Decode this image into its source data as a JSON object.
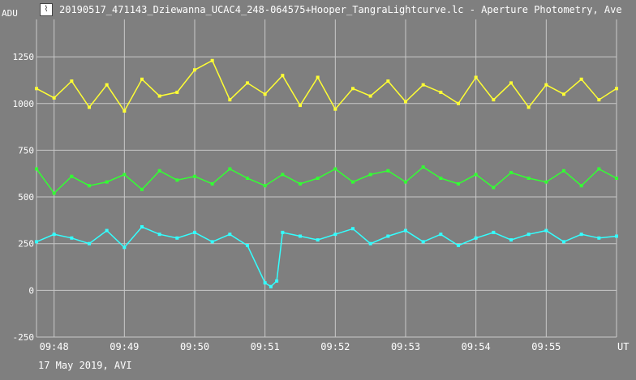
{
  "window": {
    "title": "20190517_471143_Dziewanna_UCAC4_248-064575+Hooper_TangraLightcurve.lc - Aperture Photometry, Ave",
    "icon": "lightcurve-app-icon"
  },
  "footer": {
    "text": "17 May 2019, AVI"
  },
  "colors": {
    "background": "#7f7f7f",
    "grid": "#c8c8c8",
    "text": "#ffffff"
  },
  "chart_data": {
    "type": "line",
    "ylabel": "ADU",
    "xlabel": "UT",
    "ylim": [
      -250,
      1450
    ],
    "xlim": [
      "09:47:45",
      "09:56:00"
    ],
    "yticks": [
      -250,
      0,
      250,
      500,
      750,
      1000,
      1250
    ],
    "xticks": [
      "09:48",
      "09:49",
      "09:50",
      "09:51",
      "09:52",
      "09:53",
      "09:54",
      "09:55"
    ],
    "grid": true,
    "series": [
      {
        "color": "#ffff33",
        "x": [
          "09:47:45",
          "09:48:00",
          "09:48:15",
          "09:48:30",
          "09:48:45",
          "09:49:00",
          "09:49:15",
          "09:49:30",
          "09:49:45",
          "09:50:00",
          "09:50:15",
          "09:50:30",
          "09:50:45",
          "09:51:00",
          "09:51:15",
          "09:51:30",
          "09:51:45",
          "09:52:00",
          "09:52:15",
          "09:52:30",
          "09:52:45",
          "09:53:00",
          "09:53:15",
          "09:53:30",
          "09:53:45",
          "09:54:00",
          "09:54:15",
          "09:54:30",
          "09:54:45",
          "09:55:00",
          "09:55:15",
          "09:55:30",
          "09:55:45",
          "09:56:00"
        ],
        "values": [
          1080,
          1030,
          1120,
          980,
          1100,
          960,
          1130,
          1040,
          1060,
          1180,
          1230,
          1020,
          1110,
          1050,
          1150,
          990,
          1140,
          970,
          1080,
          1040,
          1120,
          1010,
          1100,
          1060,
          1000,
          1140,
          1020,
          1110,
          980,
          1100,
          1050,
          1130,
          1020,
          1080
        ]
      },
      {
        "color": "#33ff33",
        "x": [
          "09:47:45",
          "09:48:00",
          "09:48:15",
          "09:48:30",
          "09:48:45",
          "09:49:00",
          "09:49:15",
          "09:49:30",
          "09:49:45",
          "09:50:00",
          "09:50:15",
          "09:50:30",
          "09:50:45",
          "09:51:00",
          "09:51:15",
          "09:51:30",
          "09:51:45",
          "09:52:00",
          "09:52:15",
          "09:52:30",
          "09:52:45",
          "09:53:00",
          "09:53:15",
          "09:53:30",
          "09:53:45",
          "09:54:00",
          "09:54:15",
          "09:54:30",
          "09:54:45",
          "09:55:00",
          "09:55:15",
          "09:55:30",
          "09:55:45",
          "09:56:00"
        ],
        "values": [
          650,
          520,
          610,
          560,
          580,
          620,
          540,
          640,
          590,
          610,
          570,
          650,
          600,
          560,
          620,
          570,
          600,
          650,
          580,
          620,
          640,
          580,
          660,
          600,
          570,
          620,
          550,
          630,
          600,
          580,
          640,
          560,
          650,
          600
        ]
      },
      {
        "color": "#33ffff",
        "x": [
          "09:47:45",
          "09:48:00",
          "09:48:15",
          "09:48:30",
          "09:48:45",
          "09:49:00",
          "09:49:15",
          "09:49:30",
          "09:49:45",
          "09:50:00",
          "09:50:15",
          "09:50:30",
          "09:50:45",
          "09:51:00",
          "09:51:05",
          "09:51:10",
          "09:51:15",
          "09:51:30",
          "09:51:45",
          "09:52:00",
          "09:52:15",
          "09:52:30",
          "09:52:45",
          "09:53:00",
          "09:53:15",
          "09:53:30",
          "09:53:45",
          "09:54:00",
          "09:54:15",
          "09:54:30",
          "09:54:45",
          "09:55:00",
          "09:55:15",
          "09:55:30",
          "09:55:45",
          "09:56:00"
        ],
        "values": [
          260,
          300,
          280,
          250,
          320,
          230,
          340,
          300,
          280,
          310,
          260,
          300,
          240,
          40,
          20,
          50,
          310,
          290,
          270,
          300,
          330,
          250,
          290,
          320,
          260,
          300,
          240,
          280,
          310,
          270,
          300,
          320,
          260,
          300,
          280,
          290
        ]
      }
    ]
  }
}
